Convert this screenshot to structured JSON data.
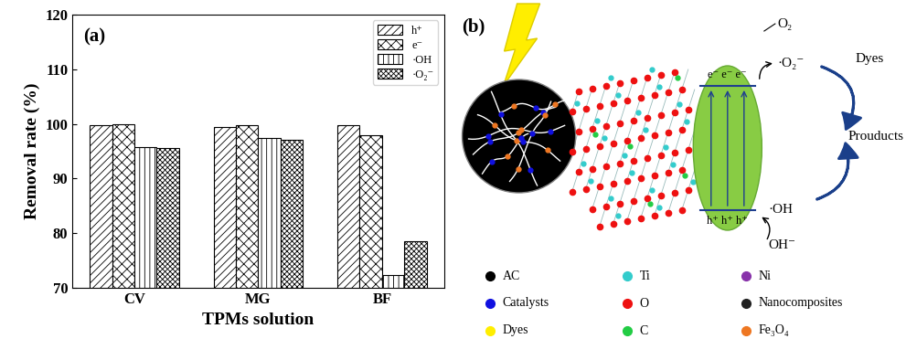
{
  "chart_data": {
    "type": "bar",
    "annotations": [
      "(a)"
    ],
    "x_label": "TPMs solution",
    "y_label": "Removal rate (%)",
    "categories": [
      "CV",
      "MG",
      "BF"
    ],
    "series": [
      {
        "name": "h⁺",
        "color": "#ffffff",
        "values": [
          99.8,
          99.5,
          99.7
        ]
      },
      {
        "name": "e⁻",
        "color": "#ffffff",
        "values": [
          99.9,
          99.8,
          98.0
        ]
      },
      {
        "name": "·OH",
        "color": "#ffffff",
        "values": [
          95.8,
          97.5,
          72.3
        ]
      },
      {
        "name": "·O₂⁻",
        "color": "#ffffff",
        "values": [
          95.5,
          97.1,
          78.5
        ]
      }
    ],
    "ylim": [
      70,
      120
    ],
    "yticks": [
      70,
      80,
      90,
      100,
      110,
      120
    ],
    "grid": false,
    "legend": "upper right"
  },
  "diagram": {
    "label": "(b)",
    "band": {
      "electrons": "e⁻ e⁻ e⁻",
      "holes": "h⁺ h⁺ h⁺"
    },
    "reactions": {
      "oxygen": "O₂",
      "superoxide": "·O₂⁻",
      "hydroxyl": "·OH",
      "hydroxide": "OH⁻",
      "dyes": "Dyes",
      "products": "Prouducts"
    },
    "legend": [
      {
        "label": "AC",
        "color": "#000000"
      },
      {
        "label": "Catalysts",
        "color": "#1010e0"
      },
      {
        "label": "Dyes",
        "color": "#ffee00"
      },
      {
        "label": "Ti",
        "color": "#33cccc"
      },
      {
        "label": "O",
        "color": "#ee1111"
      },
      {
        "label": "C",
        "color": "#22cc44"
      },
      {
        "label": "Ni",
        "color": "#8833aa"
      },
      {
        "label": "Nanocomposites",
        "color": "#222222"
      },
      {
        "label": "Fe₃O₄",
        "color": "#ee7722"
      }
    ]
  }
}
